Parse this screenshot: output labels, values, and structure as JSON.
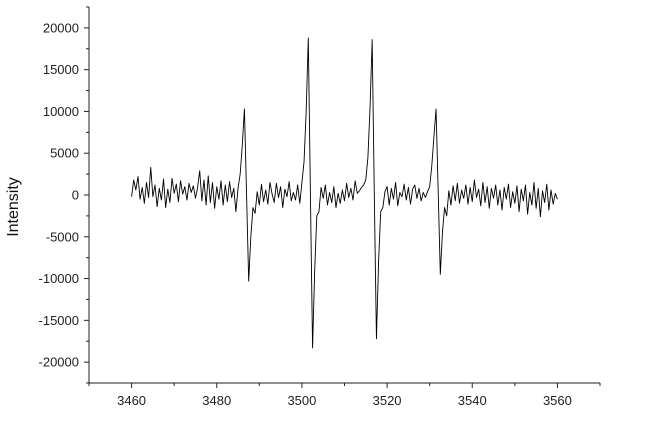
{
  "chart_data": {
    "type": "line",
    "title": "",
    "xlabel": "",
    "ylabel": "Intensity",
    "xlim": [
      3450,
      3570
    ],
    "ylim": [
      -22500,
      22500
    ],
    "x_ticks": [
      3460,
      3480,
      3500,
      3520,
      3540,
      3560
    ],
    "y_ticks": [
      -20000,
      -15000,
      -10000,
      -5000,
      0,
      5000,
      10000,
      15000,
      20000
    ],
    "x_tick_labels": [
      "3460",
      "3480",
      "3500",
      "3520",
      "3540",
      "3560"
    ],
    "y_tick_labels": [
      "-20000",
      "-15000",
      "-10000",
      "-5000",
      "0",
      "5000",
      "10000",
      "15000",
      "20000"
    ],
    "grid": false,
    "line_color": "#000000",
    "series": [
      {
        "x": [
          3460,
          3460.5,
          3461,
          3461.5,
          3462,
          3462.5,
          3463,
          3463.5,
          3464,
          3464.5,
          3465,
          3465.5,
          3466,
          3466.5,
          3467,
          3467.5,
          3468,
          3468.5,
          3469,
          3469.5,
          3470,
          3470.5,
          3471,
          3471.5,
          3472,
          3472.5,
          3473,
          3473.5,
          3474,
          3474.5,
          3475,
          3475.5,
          3476,
          3476.5,
          3477,
          3477.5,
          3478,
          3478.5,
          3479,
          3479.5,
          3480,
          3480.5,
          3481,
          3481.5,
          3482,
          3482.5,
          3483,
          3483.5,
          3484,
          3484.5,
          3485,
          3485.5,
          3486,
          3486.5,
          3487,
          3487.5,
          3488,
          3488.5,
          3489,
          3489.5,
          3490,
          3490.5,
          3491,
          3491.5,
          3492,
          3492.5,
          3493,
          3493.5,
          3494,
          3494.5,
          3495,
          3495.5,
          3496,
          3496.5,
          3497,
          3497.5,
          3498,
          3498.5,
          3499,
          3499.5,
          3500,
          3500.5,
          3501,
          3501.5,
          3502,
          3502.5,
          3503,
          3503.5,
          3504,
          3504.5,
          3505,
          3505.5,
          3506,
          3506.5,
          3507,
          3507.5,
          3508,
          3508.5,
          3509,
          3509.5,
          3510,
          3510.5,
          3511,
          3511.5,
          3512,
          3512.5,
          3513,
          3513.5,
          3514,
          3514.5,
          3515,
          3515.5,
          3516,
          3516.5,
          3517,
          3517.5,
          3518,
          3518.5,
          3519,
          3519.5,
          3520,
          3520.5,
          3521,
          3521.5,
          3522,
          3522.5,
          3523,
          3523.5,
          3524,
          3524.5,
          3525,
          3525.5,
          3526,
          3526.5,
          3527,
          3527.5,
          3528,
          3528.5,
          3529,
          3529.5,
          3530,
          3530.5,
          3531,
          3531.5,
          3532,
          3532.5,
          3533,
          3533.5,
          3534,
          3534.5,
          3535,
          3535.5,
          3536,
          3536.5,
          3537,
          3537.5,
          3538,
          3538.5,
          3539,
          3539.5,
          3540,
          3540.5,
          3541,
          3541.5,
          3542,
          3542.5,
          3543,
          3543.5,
          3544,
          3544.5,
          3545,
          3545.5,
          3546,
          3546.5,
          3547,
          3547.5,
          3548,
          3548.5,
          3549,
          3549.5,
          3550,
          3550.5,
          3551,
          3551.5,
          3552,
          3552.5,
          3553,
          3553.5,
          3554,
          3554.5,
          3555,
          3555.5,
          3556,
          3556.5,
          3557,
          3557.5,
          3558,
          3558.5,
          3559,
          3559.5,
          3560
        ],
        "y": [
          -200,
          1800,
          600,
          2200,
          -500,
          900,
          -1000,
          1500,
          -300,
          3300,
          -200,
          1200,
          -1400,
          800,
          -600,
          1900,
          -1500,
          700,
          -900,
          2000,
          200,
          1300,
          -800,
          1700,
          100,
          1000,
          -600,
          1400,
          300,
          1100,
          -400,
          900,
          2900,
          -700,
          1800,
          -1200,
          2300,
          -900,
          1500,
          -1600,
          1000,
          -500,
          1700,
          -1200,
          1200,
          -800,
          1600,
          -300,
          800,
          -2000,
          800,
          2500,
          6000,
          10300,
          0,
          -10300,
          -5000,
          -1500,
          -2200,
          400,
          -1200,
          1300,
          -800,
          600,
          -1100,
          1500,
          100,
          -900,
          1400,
          -300,
          1000,
          -1500,
          700,
          -200,
          1600,
          -700,
          300,
          -600,
          1200,
          -1000,
          1500,
          4000,
          10000,
          18800,
          0,
          -18300,
          -9000,
          -2500,
          -2000,
          900,
          -400,
          1200,
          -1200,
          300,
          -900,
          1000,
          -1500,
          200,
          -1000,
          600,
          -700,
          1400,
          -300,
          800,
          -600,
          1700,
          200,
          500,
          900,
          1200,
          1800,
          4500,
          10500,
          18600,
          0,
          -17200,
          -8000,
          -2000,
          -1500,
          400,
          1000,
          -1200,
          800,
          -500,
          1500,
          -1300,
          300,
          -200,
          1300,
          -600,
          900,
          -1100,
          700,
          1200,
          -400,
          800,
          -700,
          300,
          -300,
          400,
          1000,
          3500,
          7000,
          10300,
          500,
          -9500,
          -4500,
          -1500,
          -2500,
          500,
          -1200,
          1100,
          -700,
          1400,
          -1000,
          600,
          -400,
          1200,
          -1100,
          900,
          -800,
          1800,
          -300,
          700,
          -1300,
          1500,
          -900,
          1000,
          -1600,
          800,
          -400,
          1200,
          -1200,
          600,
          -1800,
          900,
          -500,
          1300,
          -1500,
          400,
          -1000,
          1100,
          -2000,
          700,
          -700,
          1200,
          -2300,
          300,
          -1200,
          1500,
          -1600,
          800,
          -2600,
          500,
          -900,
          1300,
          -1800,
          600,
          -1100,
          200,
          -500
        ]
      }
    ]
  }
}
